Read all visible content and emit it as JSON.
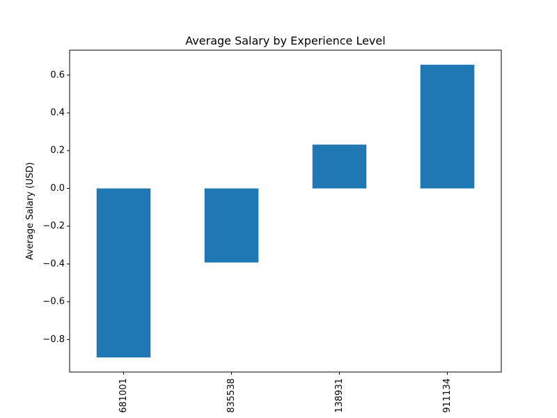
{
  "chart_data": {
    "type": "bar",
    "title": "Average Salary by Experience Level",
    "xlabel": "",
    "ylabel": "Average Salary (USD)",
    "categories": [
      "681001",
      "835538",
      "138931",
      "911134"
    ],
    "values": [
      -0.895,
      -0.392,
      0.232,
      0.655
    ],
    "ylim": [
      -0.972,
      0.732
    ],
    "yticks": [
      -0.8,
      -0.6,
      -0.4,
      -0.2,
      0.0,
      0.2,
      0.4,
      0.6
    ],
    "ytick_labels": [
      "−0.8",
      "−0.6",
      "−0.4",
      "−0.2",
      "0.0",
      "0.2",
      "0.4",
      "0.6"
    ],
    "bar_color": "#1f77b4",
    "grid": false,
    "legend": "none"
  }
}
